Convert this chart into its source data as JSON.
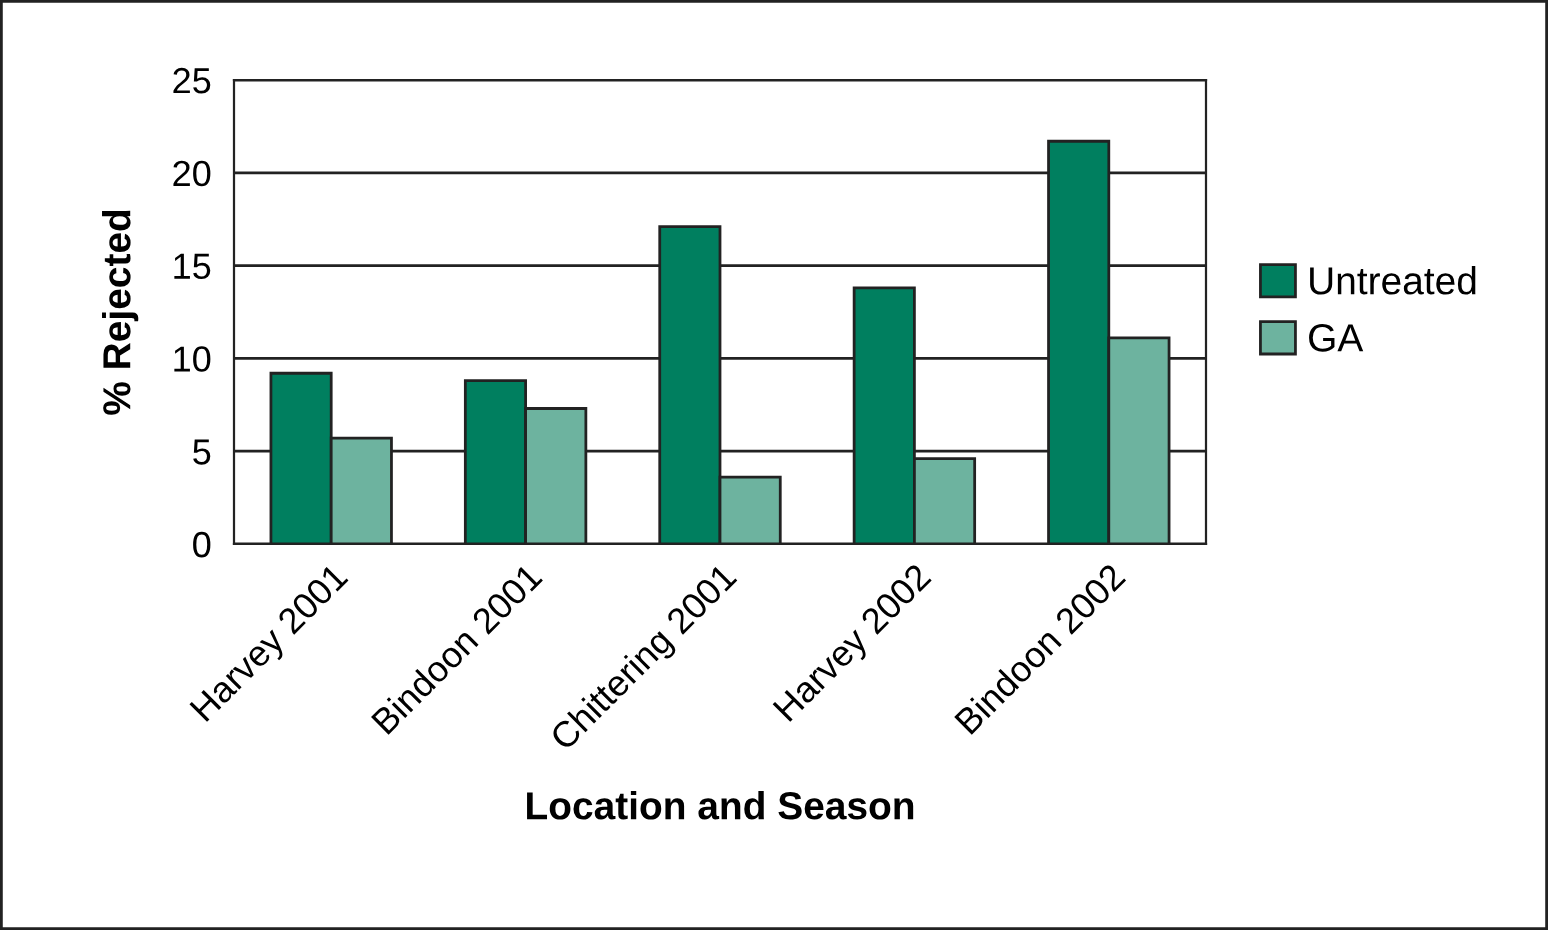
{
  "chart_data": {
    "type": "bar",
    "xlabel": "Location and Season",
    "ylabel": "% Rejected",
    "categories": [
      "Harvey 2001",
      "Bindoon 2001",
      "Chittering 2001",
      "Harvey 2002",
      "Bindoon 2002"
    ],
    "series": [
      {
        "name": "Untreated",
        "color": "#007f5f",
        "values": [
          9.2,
          8.8,
          17.1,
          13.8,
          21.7
        ]
      },
      {
        "name": "GA",
        "color": "#6db39f",
        "values": [
          5.7,
          7.3,
          3.6,
          4.6,
          11.1
        ]
      }
    ],
    "ylim": [
      0,
      25
    ],
    "yticks": [
      0,
      5,
      10,
      15,
      20,
      25
    ],
    "grid": "y",
    "legend": "right"
  }
}
